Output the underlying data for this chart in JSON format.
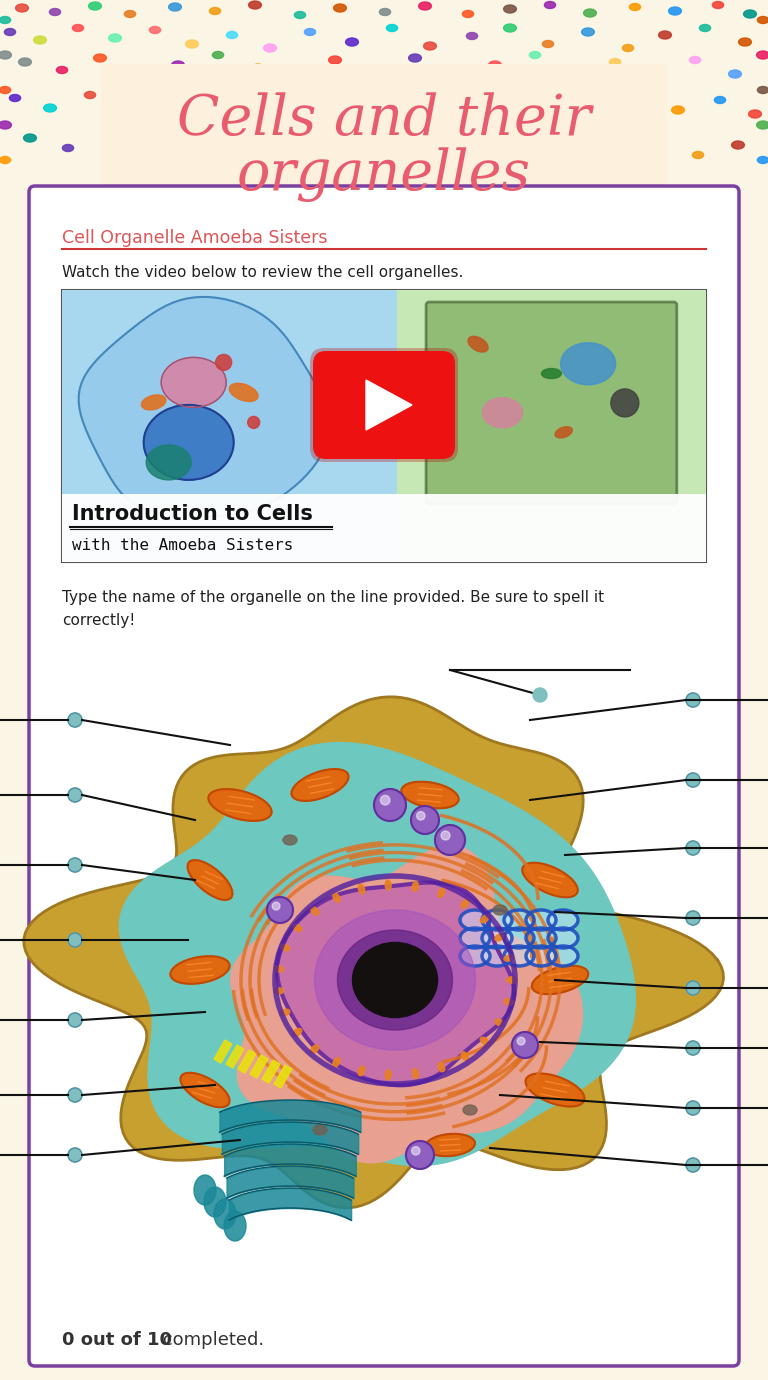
{
  "title_line1": "Cells and their",
  "title_line2": "organelles",
  "title_color": "#e85c6e",
  "title_fontsize": 40,
  "bg_color": "#faf5e4",
  "header_bg": "#fdf5e0",
  "main_bg": "#ffffff",
  "border_color": "#7b3fa0",
  "section1_title": "Cell Organelle Amoeba Sisters",
  "section1_title_color": "#e05555",
  "section1_text": "Watch the video below to review the cell organelles.",
  "video_title": "Introduction to Cells",
  "video_subtitle": "with the Amoeba Sisters",
  "section2_text1": "Type the name of the organelle on the line provided. Be sure to spell it",
  "section2_text2": "correctly!",
  "footer_bold": "0 out of 10",
  "footer_text": " completed.",
  "footer_color": "#333333",
  "dot_colors": [
    "#e74c3c",
    "#8e44ad",
    "#2ecc71",
    "#e67e22",
    "#3498db",
    "#f39c12",
    "#c0392b",
    "#1abc9c",
    "#d35400",
    "#7f8c8d",
    "#e91e63",
    "#ff5722",
    "#795548",
    "#9c27b0",
    "#4caf50",
    "#ff9800",
    "#2196f3",
    "#f44336",
    "#009688",
    "#673ab7",
    "#cddc39",
    "#ff5252",
    "#69f0ae",
    "#ff6b6b",
    "#feca57",
    "#48dbfb",
    "#ff9ff3",
    "#54a0ff",
    "#5f27cd",
    "#00d2d3"
  ]
}
